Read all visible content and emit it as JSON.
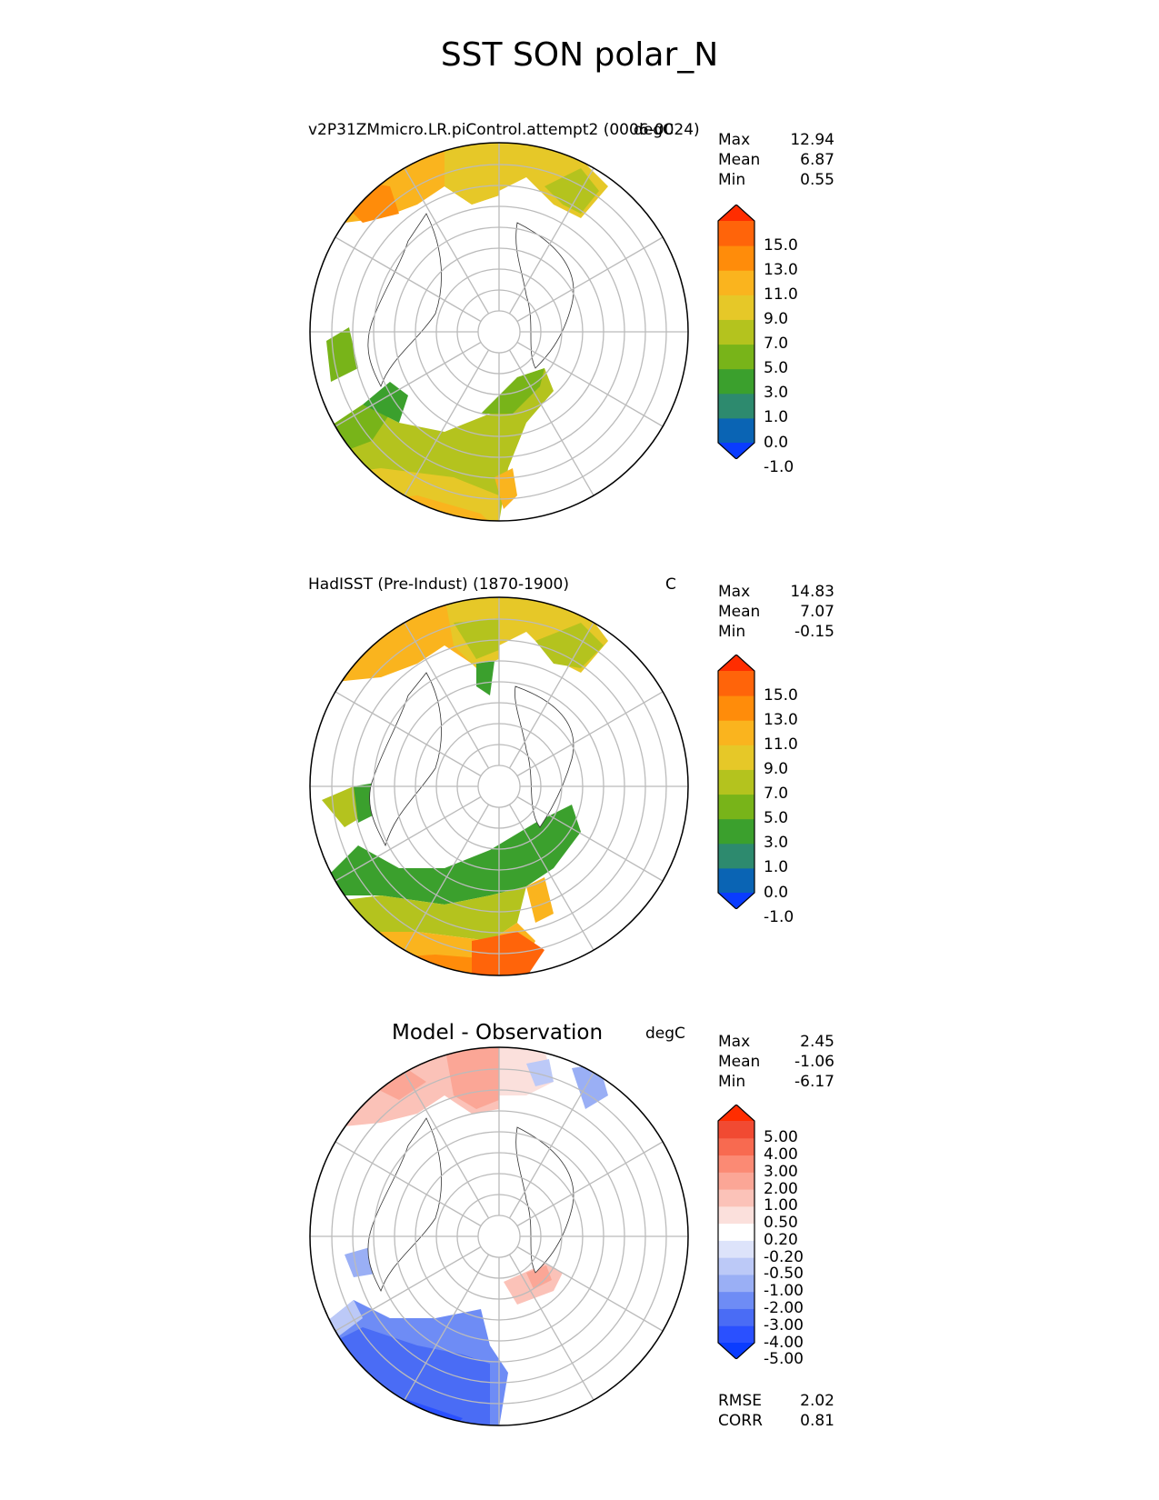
{
  "title": "SST SON polar_N",
  "panels": [
    {
      "title": "v2P31ZMmicro.LR.piControl.attempt2 (0006-0024)",
      "units": "degC",
      "stats": [
        {
          "label": "Max",
          "value": "12.94"
        },
        {
          "label": "Mean",
          "value": "6.87"
        },
        {
          "label": "Min",
          "value": "0.55"
        }
      ],
      "colorbar": {
        "colors": [
          "#0a3cff",
          "#0a64b4",
          "#2d8a6e",
          "#3ba02d",
          "#78b419",
          "#b4c31e",
          "#e6c828",
          "#fab41e",
          "#ff8c0a",
          "#ff640a",
          "#ff2d00"
        ],
        "ticks": [
          "15.0",
          "13.0",
          "11.0",
          "9.0",
          "7.0",
          "5.0",
          "3.0",
          "1.0",
          "0.0",
          "-1.0"
        ]
      }
    },
    {
      "title": "HadISST (Pre-Indust) (1870-1900)",
      "units": "C",
      "stats": [
        {
          "label": "Max",
          "value": "14.83"
        },
        {
          "label": "Mean",
          "value": "7.07"
        },
        {
          "label": "Min",
          "value": "-0.15"
        }
      ],
      "colorbar": {
        "colors": [
          "#0a3cff",
          "#0a64b4",
          "#2d8a6e",
          "#3ba02d",
          "#78b419",
          "#b4c31e",
          "#e6c828",
          "#fab41e",
          "#ff8c0a",
          "#ff640a",
          "#ff2d00"
        ],
        "ticks": [
          "15.0",
          "13.0",
          "11.0",
          "9.0",
          "7.0",
          "5.0",
          "3.0",
          "1.0",
          "0.0",
          "-1.0"
        ]
      }
    },
    {
      "title": "Model - Observation",
      "units": "degC",
      "stats": [
        {
          "label": "Max",
          "value": "2.45"
        },
        {
          "label": "Mean",
          "value": "-1.06"
        },
        {
          "label": "Min",
          "value": "-6.17"
        }
      ],
      "colorbar": {
        "colors": [
          "#0a3cff",
          "#2a50ff",
          "#4a6cf5",
          "#6e8cf5",
          "#9aaff5",
          "#bcc9f7",
          "#dde3fa",
          "#ffffff",
          "#fbe0dc",
          "#fbc2b8",
          "#fba696",
          "#fb8a74",
          "#f86a50",
          "#f14a32",
          "#ff2d00"
        ],
        "ticks": [
          "5.00",
          "4.00",
          "3.00",
          "2.00",
          "1.00",
          "0.50",
          "0.20",
          "-0.20",
          "-0.50",
          "-1.00",
          "-2.00",
          "-3.00",
          "-4.00",
          "-5.00"
        ]
      },
      "footer_stats": [
        {
          "label": "RMSE",
          "value": "2.02"
        },
        {
          "label": "CORR",
          "value": "0.81"
        }
      ]
    }
  ]
}
